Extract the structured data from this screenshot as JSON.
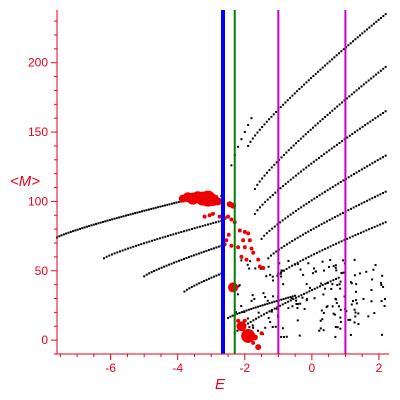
{
  "chart_data": {
    "type": "scatter",
    "xlabel": "E",
    "ylabel": "<M>",
    "xlim": [
      -7.6,
      2.3
    ],
    "ylim": [
      -10,
      238
    ],
    "xticks": [
      -6,
      -4,
      -2,
      0,
      2
    ],
    "yticks": [
      0,
      50,
      100,
      150,
      200
    ],
    "grid": false,
    "axis_color": "#e8001c",
    "vlines": [
      {
        "x": -2.65,
        "color": "#0000ff"
      },
      {
        "x": -2.3,
        "color": "#008000"
      },
      {
        "x": -1.0,
        "color": "#cc00cc"
      },
      {
        "x": 1.0,
        "color": "#cc00cc"
      }
    ],
    "black_bands": [
      {
        "x_start": -7.6,
        "x_end": -3.9,
        "y_start": 74,
        "y_end": 100,
        "n": 55
      },
      {
        "x_start": -3.9,
        "x_end": -2.7,
        "y_start": 100,
        "y_end": 104,
        "n": 10
      },
      {
        "x_start": -6.2,
        "x_end": -2.7,
        "y_start": 59,
        "y_end": 86,
        "n": 45
      },
      {
        "x_start": -2.4,
        "x_end": -1.8,
        "y_start": 126,
        "y_end": 160,
        "n": 7
      },
      {
        "x_start": -5.0,
        "x_end": -2.7,
        "y_start": 46,
        "y_end": 68,
        "n": 32
      },
      {
        "x_start": -3.8,
        "x_end": -2.7,
        "y_start": 35,
        "y_end": 48,
        "n": 16
      },
      {
        "x_start": -1.9,
        "x_end": 2.2,
        "y_start": 140,
        "y_end": 235,
        "n": 60
      },
      {
        "x_start": -1.7,
        "x_end": 2.2,
        "y_start": 109,
        "y_end": 197,
        "n": 55
      },
      {
        "x_start": -1.7,
        "x_end": 2.2,
        "y_start": 91,
        "y_end": 165,
        "n": 52
      },
      {
        "x_start": -1.5,
        "x_end": 2.2,
        "y_start": 73,
        "y_end": 133,
        "n": 48
      },
      {
        "x_start": -1.3,
        "x_end": 2.2,
        "y_start": 59,
        "y_end": 107,
        "n": 45
      },
      {
        "x_start": -1.0,
        "x_end": 2.2,
        "y_start": 47,
        "y_end": 85,
        "n": 40
      },
      {
        "x_start": -2.3,
        "x_end": 0.8,
        "y_start": 5,
        "y_end": 45,
        "n": 40
      },
      {
        "x_start": -2.5,
        "x_end": -0.5,
        "y_start": 16,
        "y_end": 32,
        "n": 30
      }
    ],
    "black_noise": {
      "x_range": [
        -2.3,
        2.2
      ],
      "y_range": [
        2,
        58
      ],
      "n": 170
    },
    "red_points": [
      {
        "x": -3.85,
        "y": 102,
        "s": 4
      },
      {
        "x": -3.7,
        "y": 103,
        "s": 5
      },
      {
        "x": -3.55,
        "y": 102,
        "s": 6
      },
      {
        "x": -3.4,
        "y": 103,
        "s": 6
      },
      {
        "x": -3.25,
        "y": 102,
        "s": 7
      },
      {
        "x": -3.1,
        "y": 102,
        "s": 8
      },
      {
        "x": -2.95,
        "y": 101,
        "s": 6
      },
      {
        "x": -2.8,
        "y": 100,
        "s": 4
      },
      {
        "x": -2.45,
        "y": 98,
        "s": 3
      },
      {
        "x": -2.35,
        "y": 97,
        "s": 3
      },
      {
        "x": -2.75,
        "y": 89,
        "s": 2
      },
      {
        "x": -2.6,
        "y": 88,
        "s": 2
      },
      {
        "x": -2.5,
        "y": 89,
        "s": 2
      },
      {
        "x": -2.4,
        "y": 87,
        "s": 2
      },
      {
        "x": -2.3,
        "y": 85,
        "s": 2
      },
      {
        "x": -2.95,
        "y": 91,
        "s": 2
      },
      {
        "x": -3.05,
        "y": 90,
        "s": 2
      },
      {
        "x": -3.2,
        "y": 89,
        "s": 2
      },
      {
        "x": -2.15,
        "y": 79,
        "s": 2
      },
      {
        "x": -2.0,
        "y": 78,
        "s": 2
      },
      {
        "x": -1.9,
        "y": 77,
        "s": 2
      },
      {
        "x": -2.05,
        "y": 72,
        "s": 2
      },
      {
        "x": -1.85,
        "y": 72,
        "s": 2
      },
      {
        "x": -2.4,
        "y": 68,
        "s": 2
      },
      {
        "x": -2.2,
        "y": 67,
        "s": 2
      },
      {
        "x": -2.0,
        "y": 67,
        "s": 2
      },
      {
        "x": -1.8,
        "y": 66,
        "s": 2
      },
      {
        "x": -1.75,
        "y": 63,
        "s": 2
      },
      {
        "x": -2.6,
        "y": 69,
        "s": 2
      },
      {
        "x": -2.55,
        "y": 72,
        "s": 2
      },
      {
        "x": -2.48,
        "y": 76,
        "s": 2
      },
      {
        "x": -2.1,
        "y": 60,
        "s": 2
      },
      {
        "x": -1.95,
        "y": 58,
        "s": 2
      },
      {
        "x": -1.6,
        "y": 58,
        "s": 2
      },
      {
        "x": -1.55,
        "y": 53,
        "s": 2
      },
      {
        "x": -1.45,
        "y": 52,
        "s": 2
      },
      {
        "x": -2.35,
        "y": 38,
        "s": 5
      },
      {
        "x": -2.1,
        "y": 10,
        "s": 5
      },
      {
        "x": -1.9,
        "y": 3,
        "s": 7
      },
      {
        "x": -1.7,
        "y": 2,
        "s": 3
      },
      {
        "x": -1.6,
        "y": -5,
        "s": 3
      },
      {
        "x": -1.75,
        "y": -2,
        "s": 2
      },
      {
        "x": -1.5,
        "y": 5,
        "s": 2
      },
      {
        "x": -2.2,
        "y": 14,
        "s": 2
      },
      {
        "x": -2.0,
        "y": 14,
        "s": 2
      }
    ]
  }
}
